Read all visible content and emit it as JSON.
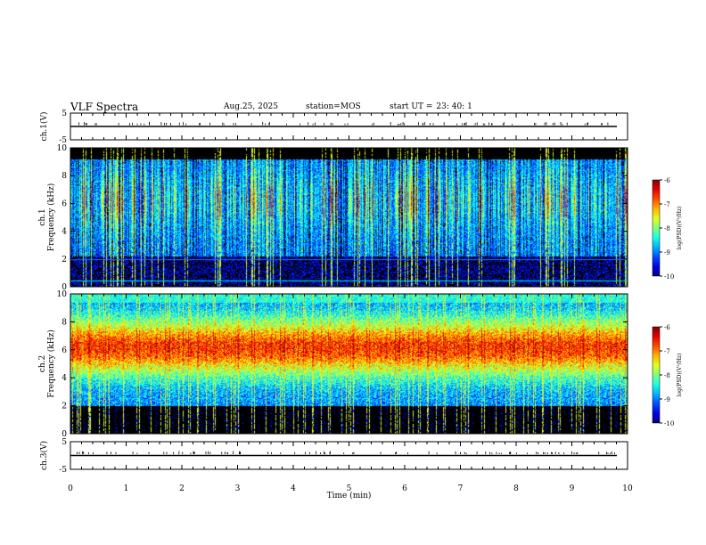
{
  "header": {
    "title": "VLF Spectra",
    "date": "Aug.25, 2025",
    "station": "station=MOS",
    "start_label": "start UT =",
    "start_time": "23: 40: 1"
  },
  "chart_data": [
    {
      "type": "line",
      "name": "ch1-waveform",
      "ylabel": "ch.1(V)",
      "ylim": [
        -5,
        5
      ],
      "yticks": [
        "5",
        "-5"
      ],
      "xlim": [
        0,
        10
      ],
      "baseline": 0
    },
    {
      "type": "heatmap",
      "name": "ch1-spectrogram",
      "ylabel": "ch.1 Frequency (kHz)",
      "ylabel_lines": [
        "ch.1",
        "Frequency (kHz)"
      ],
      "ylim": [
        0,
        10
      ],
      "yticks": [
        "0",
        "2",
        "4",
        "6",
        "8",
        "10"
      ],
      "xlim": [
        0,
        10
      ],
      "colorbar": {
        "label": "log(PSD)(V²/Hz)",
        "range": [
          -10,
          -6
        ],
        "ticks": [
          "-6",
          "-7",
          "-8",
          "-9",
          "-10"
        ]
      }
    },
    {
      "type": "heatmap",
      "name": "ch2-spectrogram",
      "ylabel": "ch.2 Frequency (kHz)",
      "ylabel_lines": [
        "ch.2",
        "Frequency (kHz)"
      ],
      "ylim": [
        0,
        10
      ],
      "yticks": [
        "0",
        "2",
        "4",
        "6",
        "8",
        "10"
      ],
      "xlim": [
        0,
        10
      ],
      "colorbar": {
        "label": "log(PSD)(V²/Hz)",
        "range": [
          -10,
          -6
        ],
        "ticks": [
          "-6",
          "-7",
          "-8",
          "-9",
          "-10"
        ]
      }
    },
    {
      "type": "line",
      "name": "ch3-waveform",
      "ylabel": "ch.3(V)",
      "ylim": [
        -5,
        5
      ],
      "yticks": [
        "5",
        "-5"
      ],
      "xlim": [
        0,
        10
      ],
      "xlabel": "Time (min)",
      "xticks": [
        "0",
        "1",
        "2",
        "3",
        "4",
        "5",
        "6",
        "7",
        "8",
        "9",
        "10"
      ],
      "baseline": 0
    }
  ],
  "colors": {
    "axis": "#000000",
    "background": "#ffffff"
  }
}
